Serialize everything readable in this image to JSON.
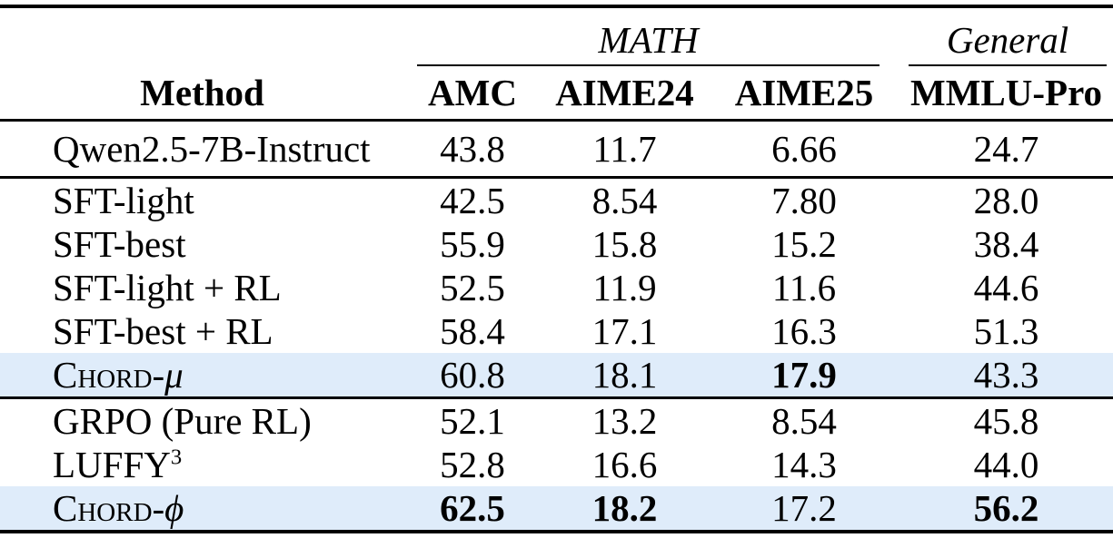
{
  "colors": {
    "highlight_row_bg": "#dfecfa",
    "rule": "#000000",
    "text": "#000000"
  },
  "header": {
    "groups": [
      {
        "label": "MATH"
      },
      {
        "label": "General"
      }
    ],
    "columns": [
      "Method",
      "AMC",
      "AIME24",
      "AIME25",
      "MMLU-Pro"
    ]
  },
  "rows": [
    {
      "method": "Qwen2.5-7B-Instruct",
      "values": [
        "43.8",
        "11.7",
        "6.66",
        "24.7"
      ]
    },
    {
      "method": "SFT-light",
      "values": [
        "42.5",
        "8.54",
        "7.80",
        "28.0"
      ]
    },
    {
      "method": "SFT-best",
      "values": [
        "55.9",
        "15.8",
        "15.2",
        "38.4"
      ]
    },
    {
      "method": "SFT-light + RL",
      "values": [
        "52.5",
        "11.9",
        "11.6",
        "44.6"
      ]
    },
    {
      "method": "SFT-best + RL",
      "values": [
        "58.4",
        "17.1",
        "16.3",
        "51.3"
      ]
    },
    {
      "method_sc": "Chord-",
      "method_it": "μ",
      "highlight": true,
      "values": [
        "60.8",
        "18.1",
        "17.9",
        "43.3"
      ],
      "bold": [
        false,
        false,
        true,
        false
      ]
    },
    {
      "method": "GRPO (Pure RL)",
      "values": [
        "52.1",
        "13.2",
        "8.54",
        "45.8"
      ]
    },
    {
      "method": "LUFFY",
      "method_sup": "3",
      "values": [
        "52.8",
        "16.6",
        "14.3",
        "44.0"
      ]
    },
    {
      "method_sc": "Chord-",
      "method_it": "ϕ",
      "highlight": true,
      "values": [
        "62.5",
        "18.2",
        "17.2",
        "56.2"
      ],
      "bold": [
        true,
        true,
        false,
        true
      ]
    }
  ]
}
